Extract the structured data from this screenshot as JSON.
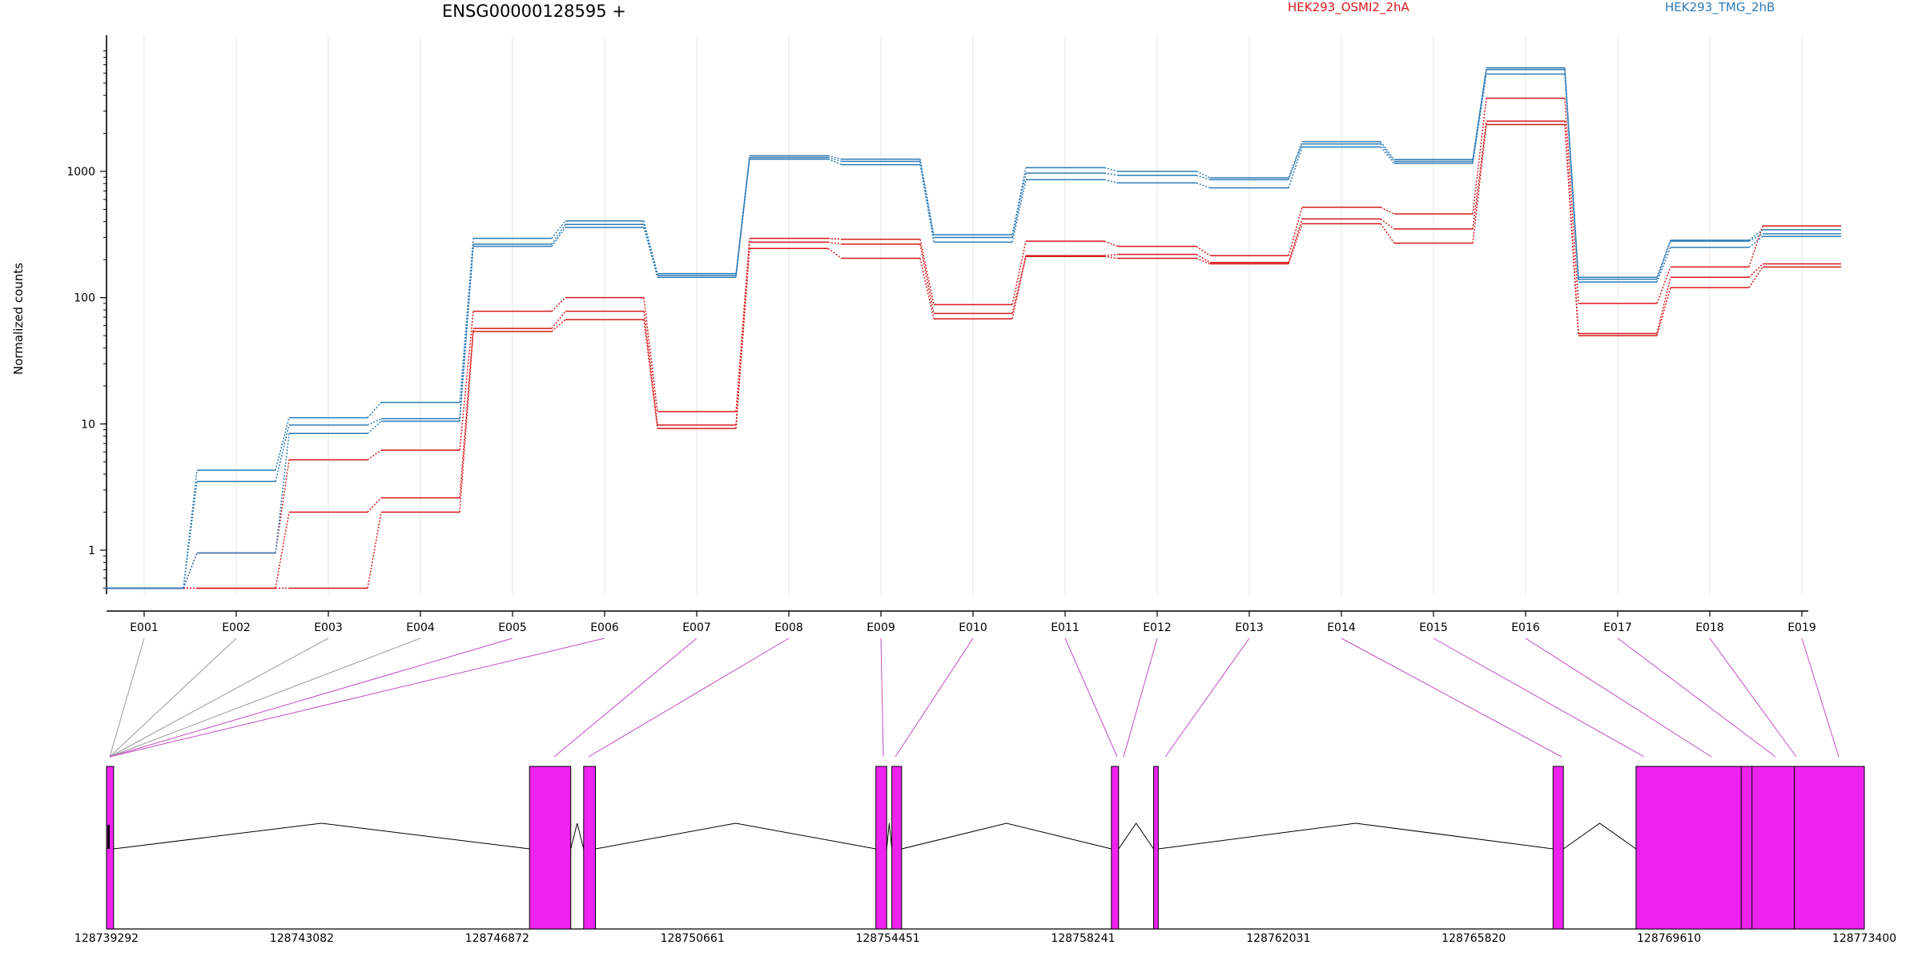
{
  "title": "ENSG00000128595 +",
  "ylabel": "Normalized counts",
  "chart_data": {
    "type": "line",
    "title": "ENSG00000128595 +",
    "ylabel": "Normalized counts",
    "xlabel": "",
    "yscale": "log",
    "ylim": [
      0.3,
      9500
    ],
    "yticks": [
      "1",
      "10",
      "100",
      "1000"
    ],
    "categories": [
      "E001",
      "E002",
      "E003",
      "E004",
      "E005",
      "E006",
      "E007",
      "E008",
      "E009",
      "E010",
      "E011",
      "E012",
      "E013",
      "E014",
      "E015",
      "E016",
      "E017",
      "E018",
      "E019"
    ],
    "legend": [
      "HEK293_OSMI2_2hA",
      "HEK293_TMG_2hB"
    ],
    "legend_placement": "top",
    "grid": "vertical",
    "series": [
      {
        "name": "HEK293_OSMI2_2hA",
        "color": "#d7191c",
        "values": [
          0.5,
          0.95,
          5.2,
          6.2,
          78,
          100,
          12.5,
          295,
          290,
          88,
          280,
          255,
          215,
          520,
          460,
          3800,
          90,
          175,
          370
        ]
      },
      {
        "name": "HEK293_OSMI2_2hA",
        "color": "#d7191c",
        "values": [
          0.5,
          0.5,
          2.0,
          2.6,
          57,
          78,
          9.8,
          275,
          265,
          75,
          215,
          220,
          190,
          420,
          350,
          2500,
          52,
          145,
          185
        ]
      },
      {
        "name": "HEK293_OSMI2_2hA",
        "color": "#d7191c",
        "values": [
          0.5,
          0.5,
          0.5,
          2.0,
          54,
          67,
          9.2,
          245,
          205,
          68,
          212,
          205,
          185,
          385,
          270,
          2350,
          50,
          120,
          175
        ]
      },
      {
        "name": "HEK293_TMG_2hB",
        "color": "#2c7bb6",
        "values": [
          0.5,
          4.3,
          11.2,
          14.8,
          295,
          405,
          155,
          1330,
          1250,
          315,
          1070,
          1000,
          890,
          1720,
          1240,
          6600,
          145,
          285,
          345
        ]
      },
      {
        "name": "HEK293_TMG_2hB",
        "color": "#2c7bb6",
        "values": [
          0.5,
          3.5,
          9.8,
          11.0,
          265,
          380,
          150,
          1290,
          1200,
          300,
          970,
          930,
          860,
          1650,
          1200,
          6400,
          140,
          280,
          320
        ]
      },
      {
        "name": "HEK293_TMG_2hB",
        "color": "#2c7bb6",
        "values": [
          0.5,
          0.95,
          8.4,
          10.5,
          255,
          360,
          145,
          1250,
          1130,
          275,
          860,
          810,
          740,
          1560,
          1160,
          5900,
          133,
          250,
          305
        ]
      }
    ],
    "gene_model": {
      "coordinate_labels": [
        "128739292",
        "128743082",
        "128746872",
        "128750661",
        "128754451",
        "128758241",
        "128762031",
        "128765820",
        "128769610",
        "128773400"
      ],
      "range": [
        128739292,
        128773400
      ],
      "exons": [
        {
          "start": 128739292,
          "end": 128739430
        },
        {
          "start": 128747500,
          "end": 128748300
        },
        {
          "start": 128748550,
          "end": 128748780
        },
        {
          "start": 128754220,
          "end": 128754430
        },
        {
          "start": 128754530,
          "end": 128754720
        },
        {
          "start": 128758790,
          "end": 128758930
        },
        {
          "start": 128759610,
          "end": 128759700
        },
        {
          "start": 128767360,
          "end": 128767560
        },
        {
          "start": 128768970,
          "end": 128773400
        }
      ],
      "exon_bin_map": [
        0,
        0,
        0,
        0,
        0,
        0,
        1,
        2,
        3,
        4,
        5,
        5,
        6,
        7,
        8,
        8,
        8,
        8,
        8
      ],
      "exon_color": "#ee22ee"
    }
  }
}
